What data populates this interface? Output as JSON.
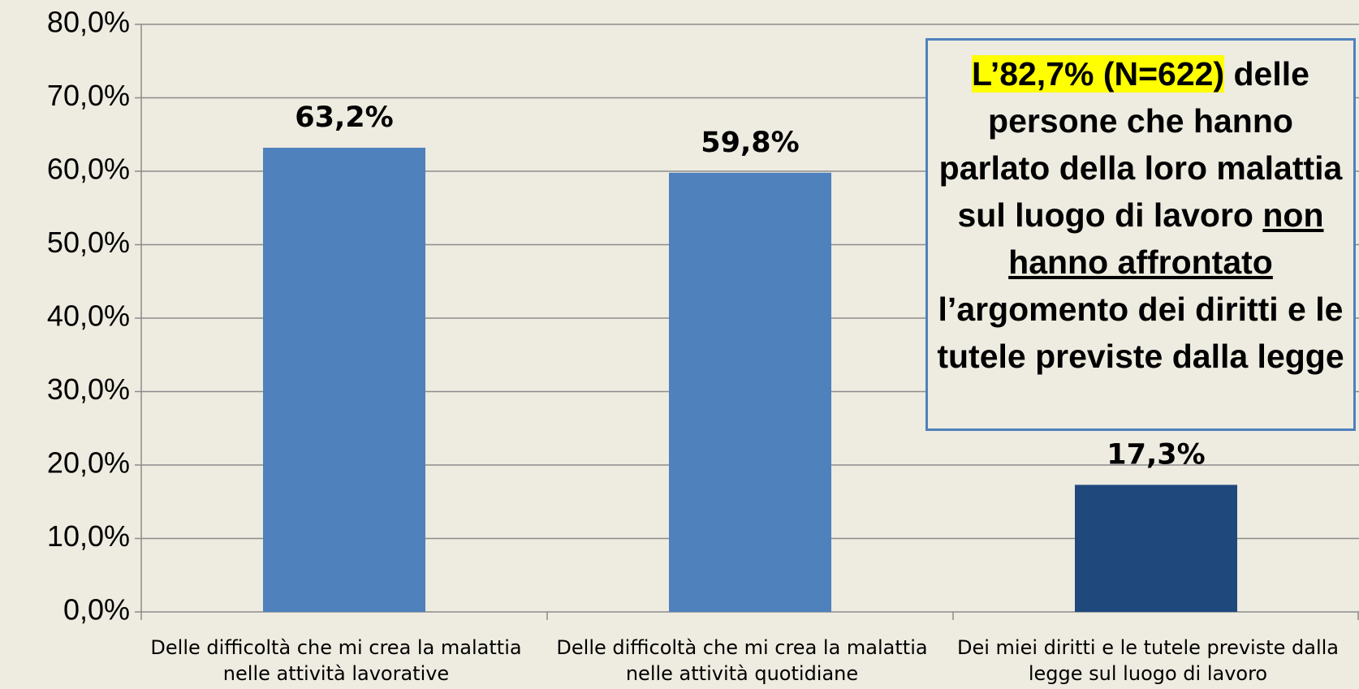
{
  "chart_data": {
    "type": "bar",
    "categories": [
      "Delle difficoltà che mi crea la malattia nelle attività lavorative",
      "Delle difficoltà che mi crea la malattia nelle attività quotidiane",
      "Dei miei diritti e le tutele previste dalla legge sul luogo di lavoro"
    ],
    "values": [
      63.2,
      59.8,
      17.3
    ],
    "value_labels": [
      "63,2%",
      "59,8%",
      "17,3%"
    ],
    "colors": [
      "#4f81bd",
      "#4f81bd",
      "#1f497d"
    ],
    "ylim": [
      0,
      80
    ],
    "yticks": [
      {
        "value": 0,
        "label": "0,0%"
      },
      {
        "value": 10,
        "label": "10,0%"
      },
      {
        "value": 20,
        "label": "20,0%"
      },
      {
        "value": 30,
        "label": "30,0%"
      },
      {
        "value": 40,
        "label": "40,0%"
      },
      {
        "value": 50,
        "label": "50,0%"
      },
      {
        "value": 60,
        "label": "60,0%"
      },
      {
        "value": 70,
        "label": "70,0%"
      },
      {
        "value": 80,
        "label": "80,0%"
      }
    ],
    "grid": true,
    "annotation": {
      "highlight": "L’82,7% (N=622)",
      "text1": " delle persone che hanno parlato della loro malattia sul luogo di lavoro ",
      "underline": "non hanno affrontato",
      "text2": " l’argomento dei diritti e le tutele previste dalla legge"
    }
  }
}
